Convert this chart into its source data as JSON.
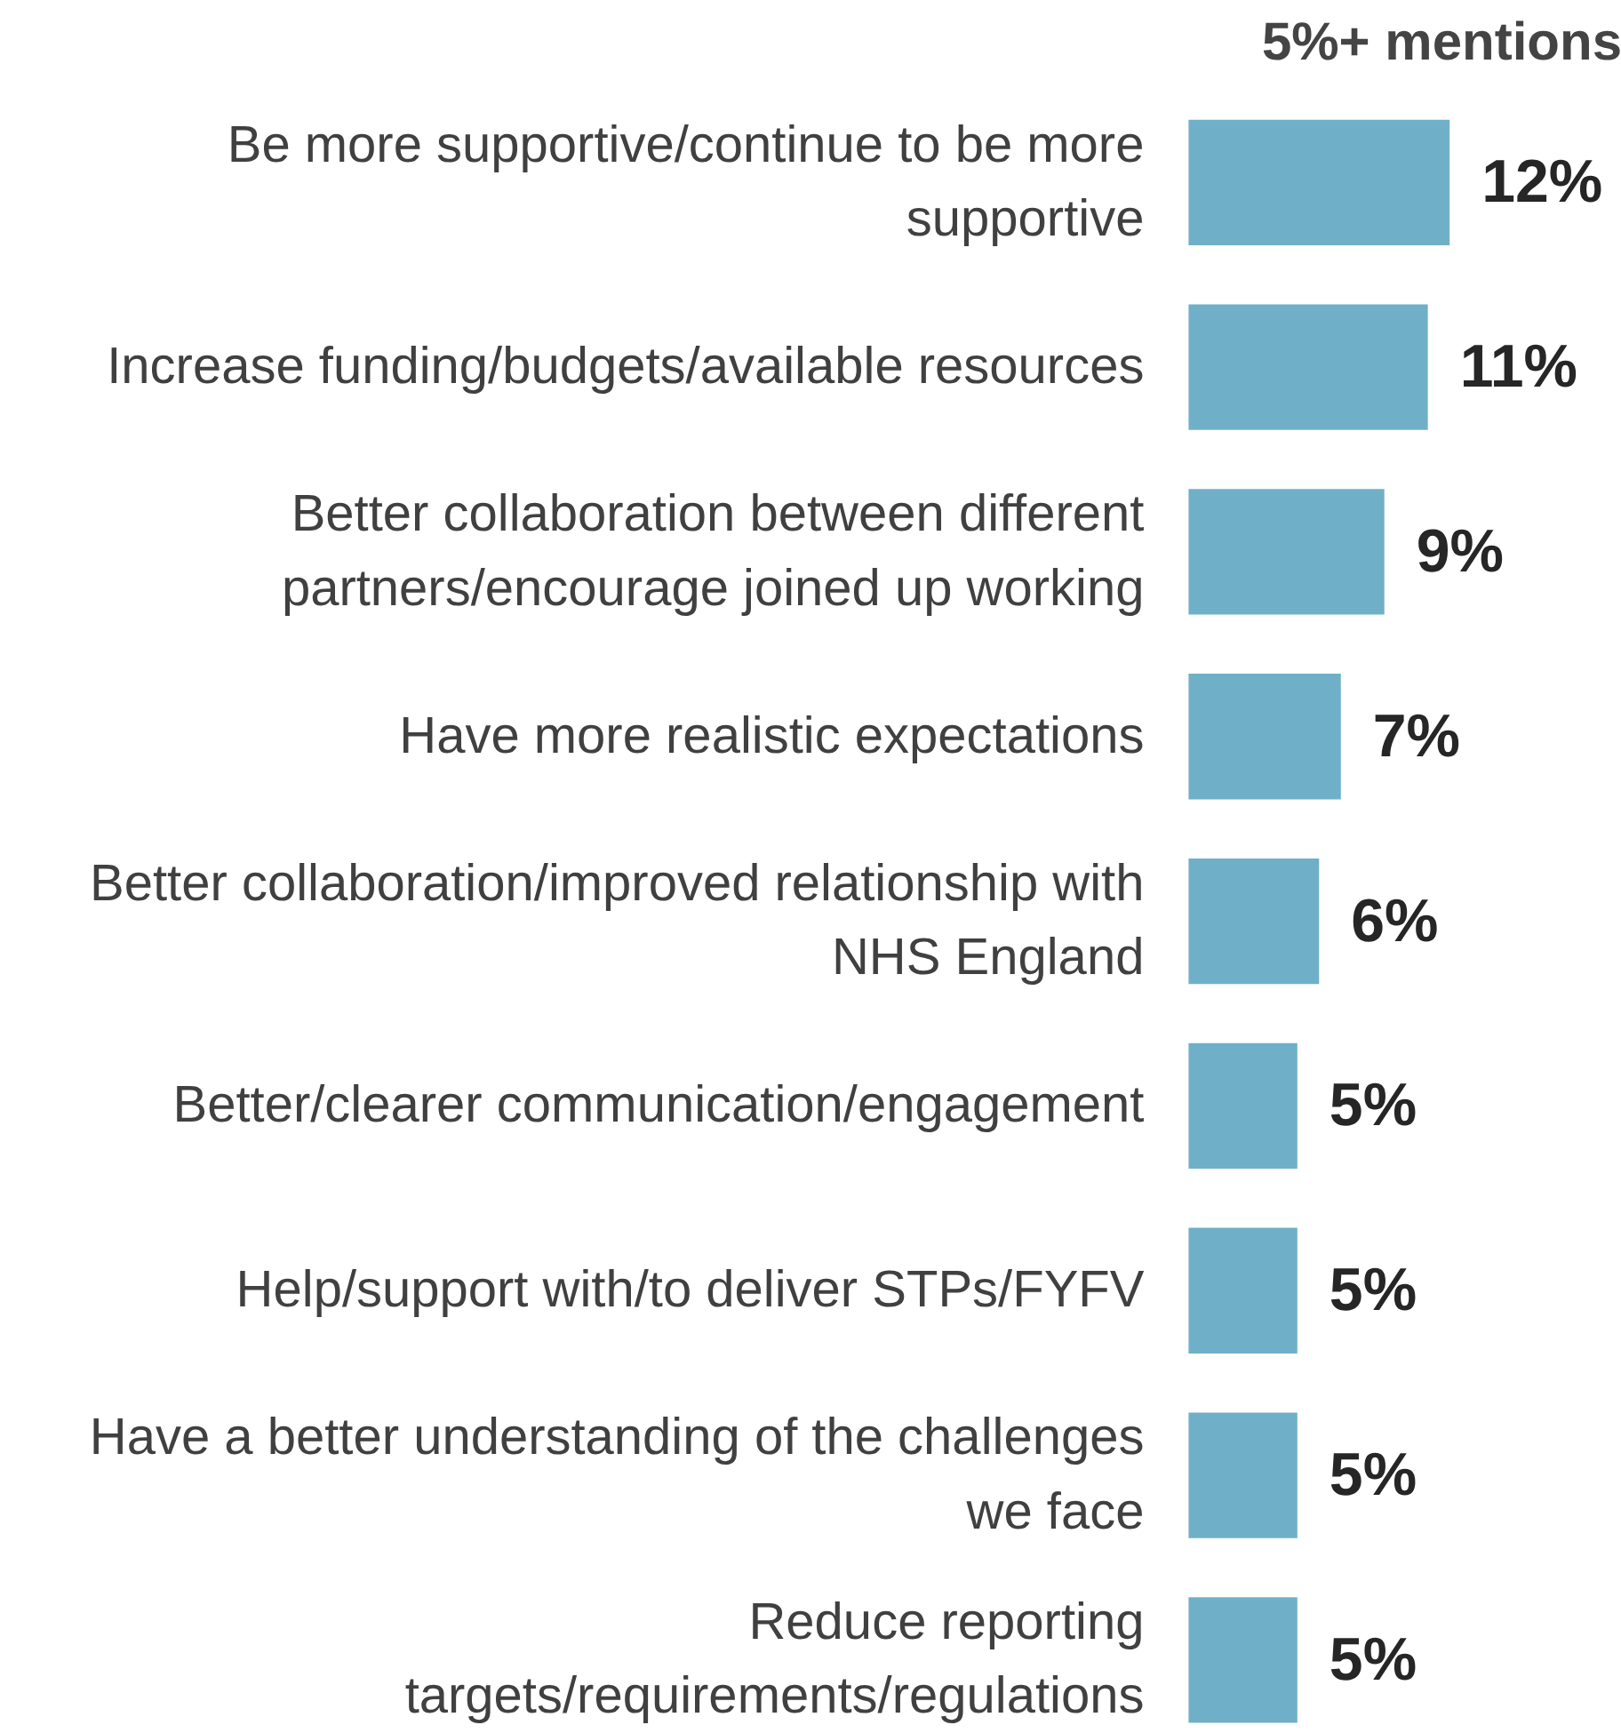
{
  "chart_data": {
    "type": "bar",
    "orientation": "horizontal",
    "title": "5%+ mentions",
    "categories": [
      "Be more supportive/continue to be more supportive",
      "Increase funding/budgets/available resources",
      "Better collaboration between different partners/encourage joined up working",
      "Have more realistic expectations",
      "Better collaboration/improved relationship with NHS England",
      "Better/clearer communication/engagement",
      "Help/support with/to deliver STPs/FYFV",
      "Have a better understanding of the challenges we face",
      "Reduce reporting targets/requirements/regulations"
    ],
    "values": [
      12,
      11,
      9,
      7,
      6,
      5,
      5,
      5,
      5
    ],
    "value_labels": [
      "12%",
      "11%",
      "9%",
      "7%",
      "6%",
      "5%",
      "5%",
      "5%",
      "5%"
    ],
    "color": "#6fb0c8",
    "grid": false
  }
}
